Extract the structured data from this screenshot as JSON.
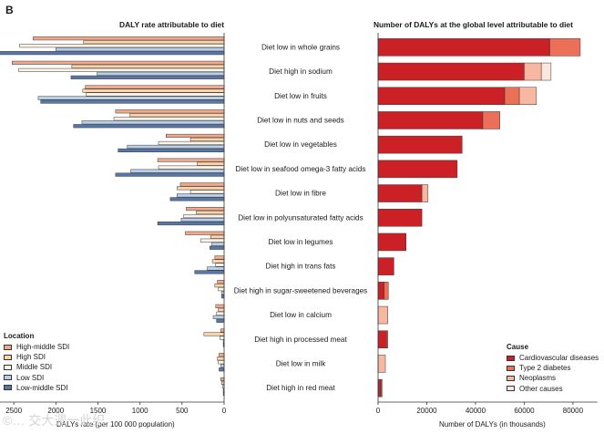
{
  "panel_letter": "B",
  "watermark": "©… 交大週一此织",
  "left_title": "DALY rate attributable to diet",
  "right_title": "Number of DALYs at the global level attributable to diet",
  "category_labels": [
    "Diet low in whole grains",
    "Diet high in sodium",
    "Diet low in fruits",
    "Diet low in nuts and seeds",
    "Diet low in vegetables",
    "Diet low in seafood omega-3 fatty acids",
    "Diet low in fibre",
    "Diet low in polyunsaturated fatty acids",
    "Diet low in legumes",
    "Diet high in trans fats",
    "Diet high in sugar-sweetened beverages",
    "Diet low in calcium",
    "Diet high in processed meat",
    "Diet low in milk",
    "Diet high in red meat"
  ],
  "chart_data": [
    {
      "type": "bar",
      "orientation": "horizontal",
      "title": "DALY rate attributable to diet",
      "xlabel": "DALYs rate (per 100 000 population)",
      "xlim": [
        0,
        2850
      ],
      "x_reversed": true,
      "xticks": [
        2500,
        2000,
        1500,
        1000,
        500,
        0
      ],
      "legend_title": "Location",
      "legend_position": "bottom-left",
      "categories": [
        "Diet low in whole grains",
        "Diet high in sodium",
        "Diet low in fruits",
        "Diet low in nuts and seeds",
        "Diet low in vegetables",
        "Diet low in seafood omega-3 fatty acids",
        "Diet low in fibre",
        "Diet low in polyunsaturated fatty acids",
        "Diet low in legumes",
        "Diet high in trans fats",
        "Diet high in sugar-sweetened beverages",
        "Diet low in calcium",
        "Diet high in processed meat",
        "Diet low in milk",
        "Diet high in red meat"
      ],
      "series": [
        {
          "name": "High-middle SDI",
          "color": "#f2a98a",
          "values": [
            2270,
            2520,
            1650,
            1290,
            690,
            790,
            520,
            450,
            460,
            110,
            80,
            100,
            40,
            60,
            40
          ]
        },
        {
          "name": "High SDI",
          "color": "#fbd3a8",
          "values": [
            1670,
            1810,
            1680,
            1120,
            400,
            320,
            560,
            330,
            160,
            140,
            110,
            70,
            240,
            80,
            30
          ]
        },
        {
          "name": "Middle SDI",
          "color": "#fdf3e8",
          "values": [
            2430,
            2440,
            1640,
            1310,
            780,
            780,
            400,
            480,
            280,
            100,
            70,
            90,
            50,
            70,
            20
          ]
        },
        {
          "name": "Low SDI",
          "color": "#b8cfe8",
          "values": [
            2000,
            1510,
            2210,
            1690,
            1150,
            1110,
            560,
            510,
            150,
            200,
            30,
            130,
            10,
            40,
            10
          ]
        },
        {
          "name": "Low-middle SDI",
          "color": "#5876a6",
          "values": [
            2860,
            1820,
            2180,
            1790,
            1260,
            1290,
            640,
            790,
            170,
            350,
            30,
            90,
            10,
            60,
            10
          ]
        }
      ]
    },
    {
      "type": "bar",
      "orientation": "horizontal",
      "stacked": true,
      "title": "Number of DALYs at the global level attributable to diet",
      "xlabel": "Number of DALYs (in thousands)",
      "xlim": [
        0,
        90000
      ],
      "xticks": [
        0,
        20000,
        40000,
        60000,
        80000
      ],
      "legend_title": "Cause",
      "legend_position": "bottom-right",
      "categories": [
        "Diet low in whole grains",
        "Diet high in sodium",
        "Diet low in fruits",
        "Diet low in nuts and seeds",
        "Diet low in vegetables",
        "Diet low in seafood omega-3 fatty acids",
        "Diet low in fibre",
        "Diet low in polyunsaturated fatty acids",
        "Diet low in legumes",
        "Diet high in trans fats",
        "Diet high in sugar-sweetened beverages",
        "Diet low in calcium",
        "Diet high in processed meat",
        "Diet low in milk",
        "Diet high in red meat"
      ],
      "series": [
        {
          "name": "Cardiovascular diseases",
          "color": "#cc2027",
          "values": [
            70500,
            60000,
            52000,
            43000,
            34500,
            32500,
            18000,
            18000,
            11500,
            6500,
            2500,
            0,
            3500,
            0,
            1000
          ]
        },
        {
          "name": "Type 2 diabetes",
          "color": "#ec7057",
          "values": [
            12500,
            0,
            6000,
            7000,
            0,
            0,
            0,
            0,
            0,
            0,
            1700,
            0,
            500,
            0,
            400
          ]
        },
        {
          "name": "Neoplasms",
          "color": "#f7b7a1",
          "values": [
            0,
            7000,
            7000,
            0,
            0,
            0,
            2500,
            0,
            0,
            0,
            0,
            4000,
            0,
            3000,
            300
          ]
        },
        {
          "name": "Other causes",
          "color": "#fde6dc",
          "values": [
            0,
            4000,
            0,
            0,
            0,
            0,
            0,
            0,
            0,
            0,
            0,
            0,
            0,
            0,
            0
          ]
        }
      ]
    }
  ]
}
